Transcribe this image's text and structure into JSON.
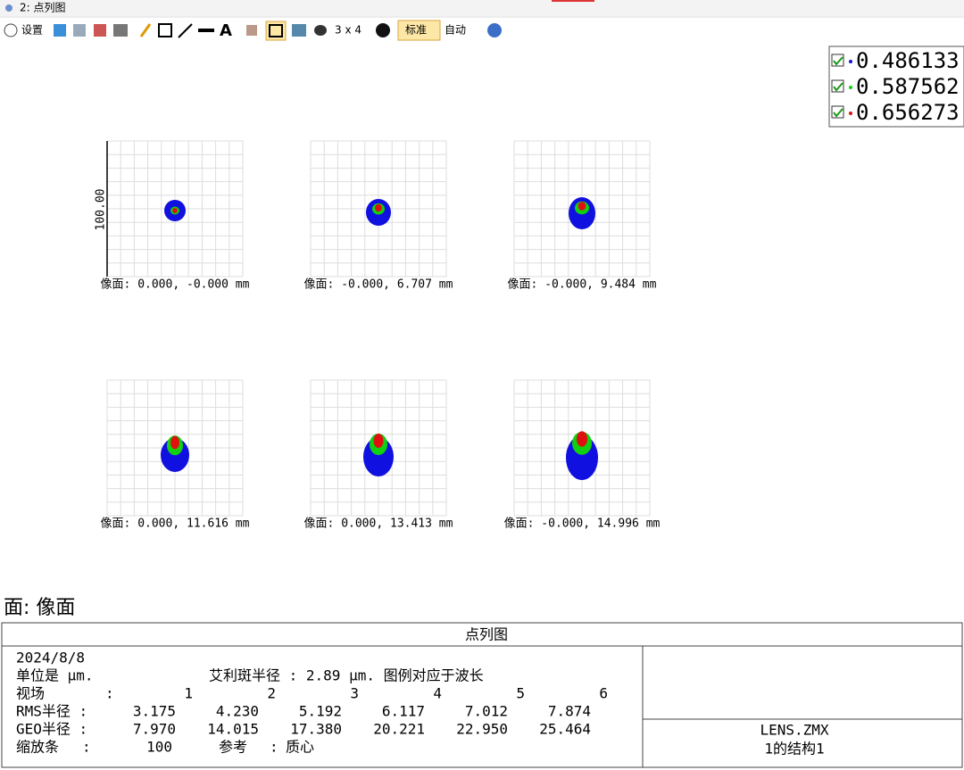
{
  "window": {
    "title": "2: 点列图"
  },
  "toolbar": {
    "settings": "设置",
    "layout": "3 x 4",
    "mode": "标准",
    "auto": "自动"
  },
  "legend": [
    {
      "label": "0.486133",
      "color": "#1010e0"
    },
    {
      "label": "0.587562",
      "color": "#10d010"
    },
    {
      "label": "0.656273",
      "color": "#e01010"
    }
  ],
  "scale_label": "100.00",
  "plots": [
    {
      "label": "像面: 0.000, -0.000 mm"
    },
    {
      "label": "像面: -0.000, 6.707 mm"
    },
    {
      "label": "像面: -0.000, 9.484 mm"
    },
    {
      "label": "像面: 0.000, 11.616 mm"
    },
    {
      "label": "像面: 0.000, 13.413 mm"
    },
    {
      "label": "像面: -0.000, 14.996 mm"
    }
  ],
  "surface_title": "面: 像面",
  "info": {
    "title": "点列图",
    "date": "2024/8/8",
    "units": "单位是 µm.",
    "airy": "艾利斑半径 : 2.89 µm. 图例对应于波长",
    "rows": [
      {
        "label": "视场",
        "values": [
          "1",
          "2",
          "3",
          "4",
          "5",
          "6"
        ]
      },
      {
        "label": "RMS半径 :",
        "values": [
          "3.175",
          "4.230",
          "5.192",
          "6.117",
          "7.012",
          "7.874"
        ]
      },
      {
        "label": "GEO半径 :",
        "values": [
          "7.970",
          "14.015",
          "17.380",
          "20.221",
          "22.950",
          "25.464"
        ]
      }
    ],
    "scale_label": "缩放条",
    "scale_value": "100",
    "ref_label": "参考",
    "ref_value": "质心",
    "file": "LENS.ZMX",
    "config": "1的结构1"
  }
}
